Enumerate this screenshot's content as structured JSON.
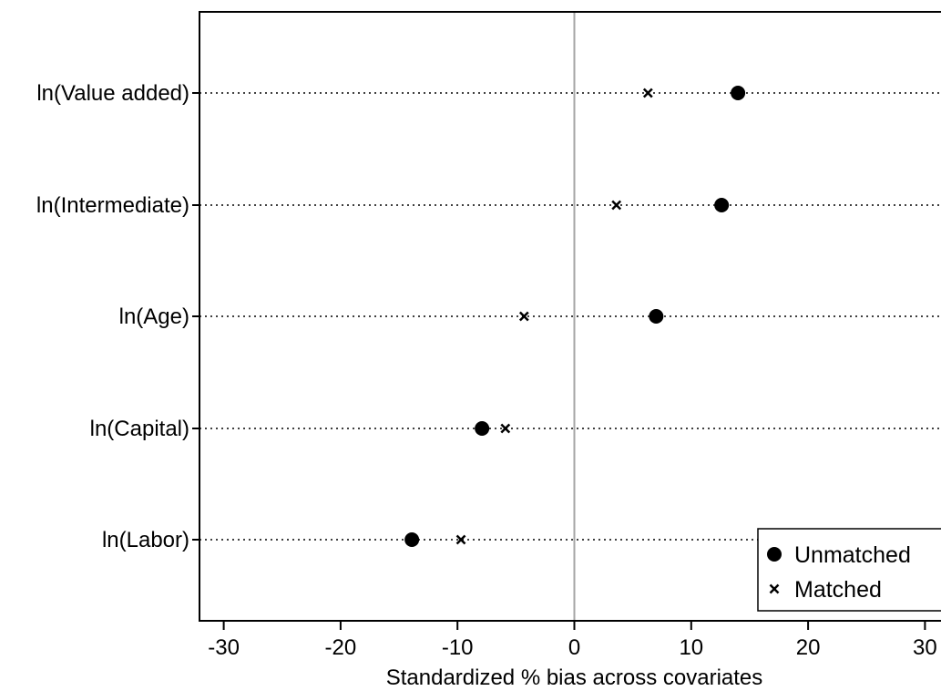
{
  "chart_data": {
    "type": "scatter",
    "title": "",
    "xlabel": "Standardized % bias across covariates",
    "ylabel": "",
    "xlim": [
      -32,
      32
    ],
    "xticks": [
      -30,
      -20,
      -10,
      0,
      10,
      20,
      30
    ],
    "reference_line_x": 0,
    "grid": "dotted horizontal lines at each covariate",
    "legend_position": "bottom-right",
    "categories": [
      "ln(Value added)",
      "ln(Intermediate)",
      "ln(Age)",
      "ln(Capital)",
      "ln(Labor)"
    ],
    "series": [
      {
        "name": "Unmatched",
        "marker": "filled-circle",
        "values": [
          14.0,
          12.6,
          7.0,
          -7.9,
          -13.9
        ]
      },
      {
        "name": "Matched",
        "marker": "x",
        "values": [
          6.3,
          3.6,
          -4.3,
          -5.9,
          -9.7
        ]
      }
    ]
  }
}
